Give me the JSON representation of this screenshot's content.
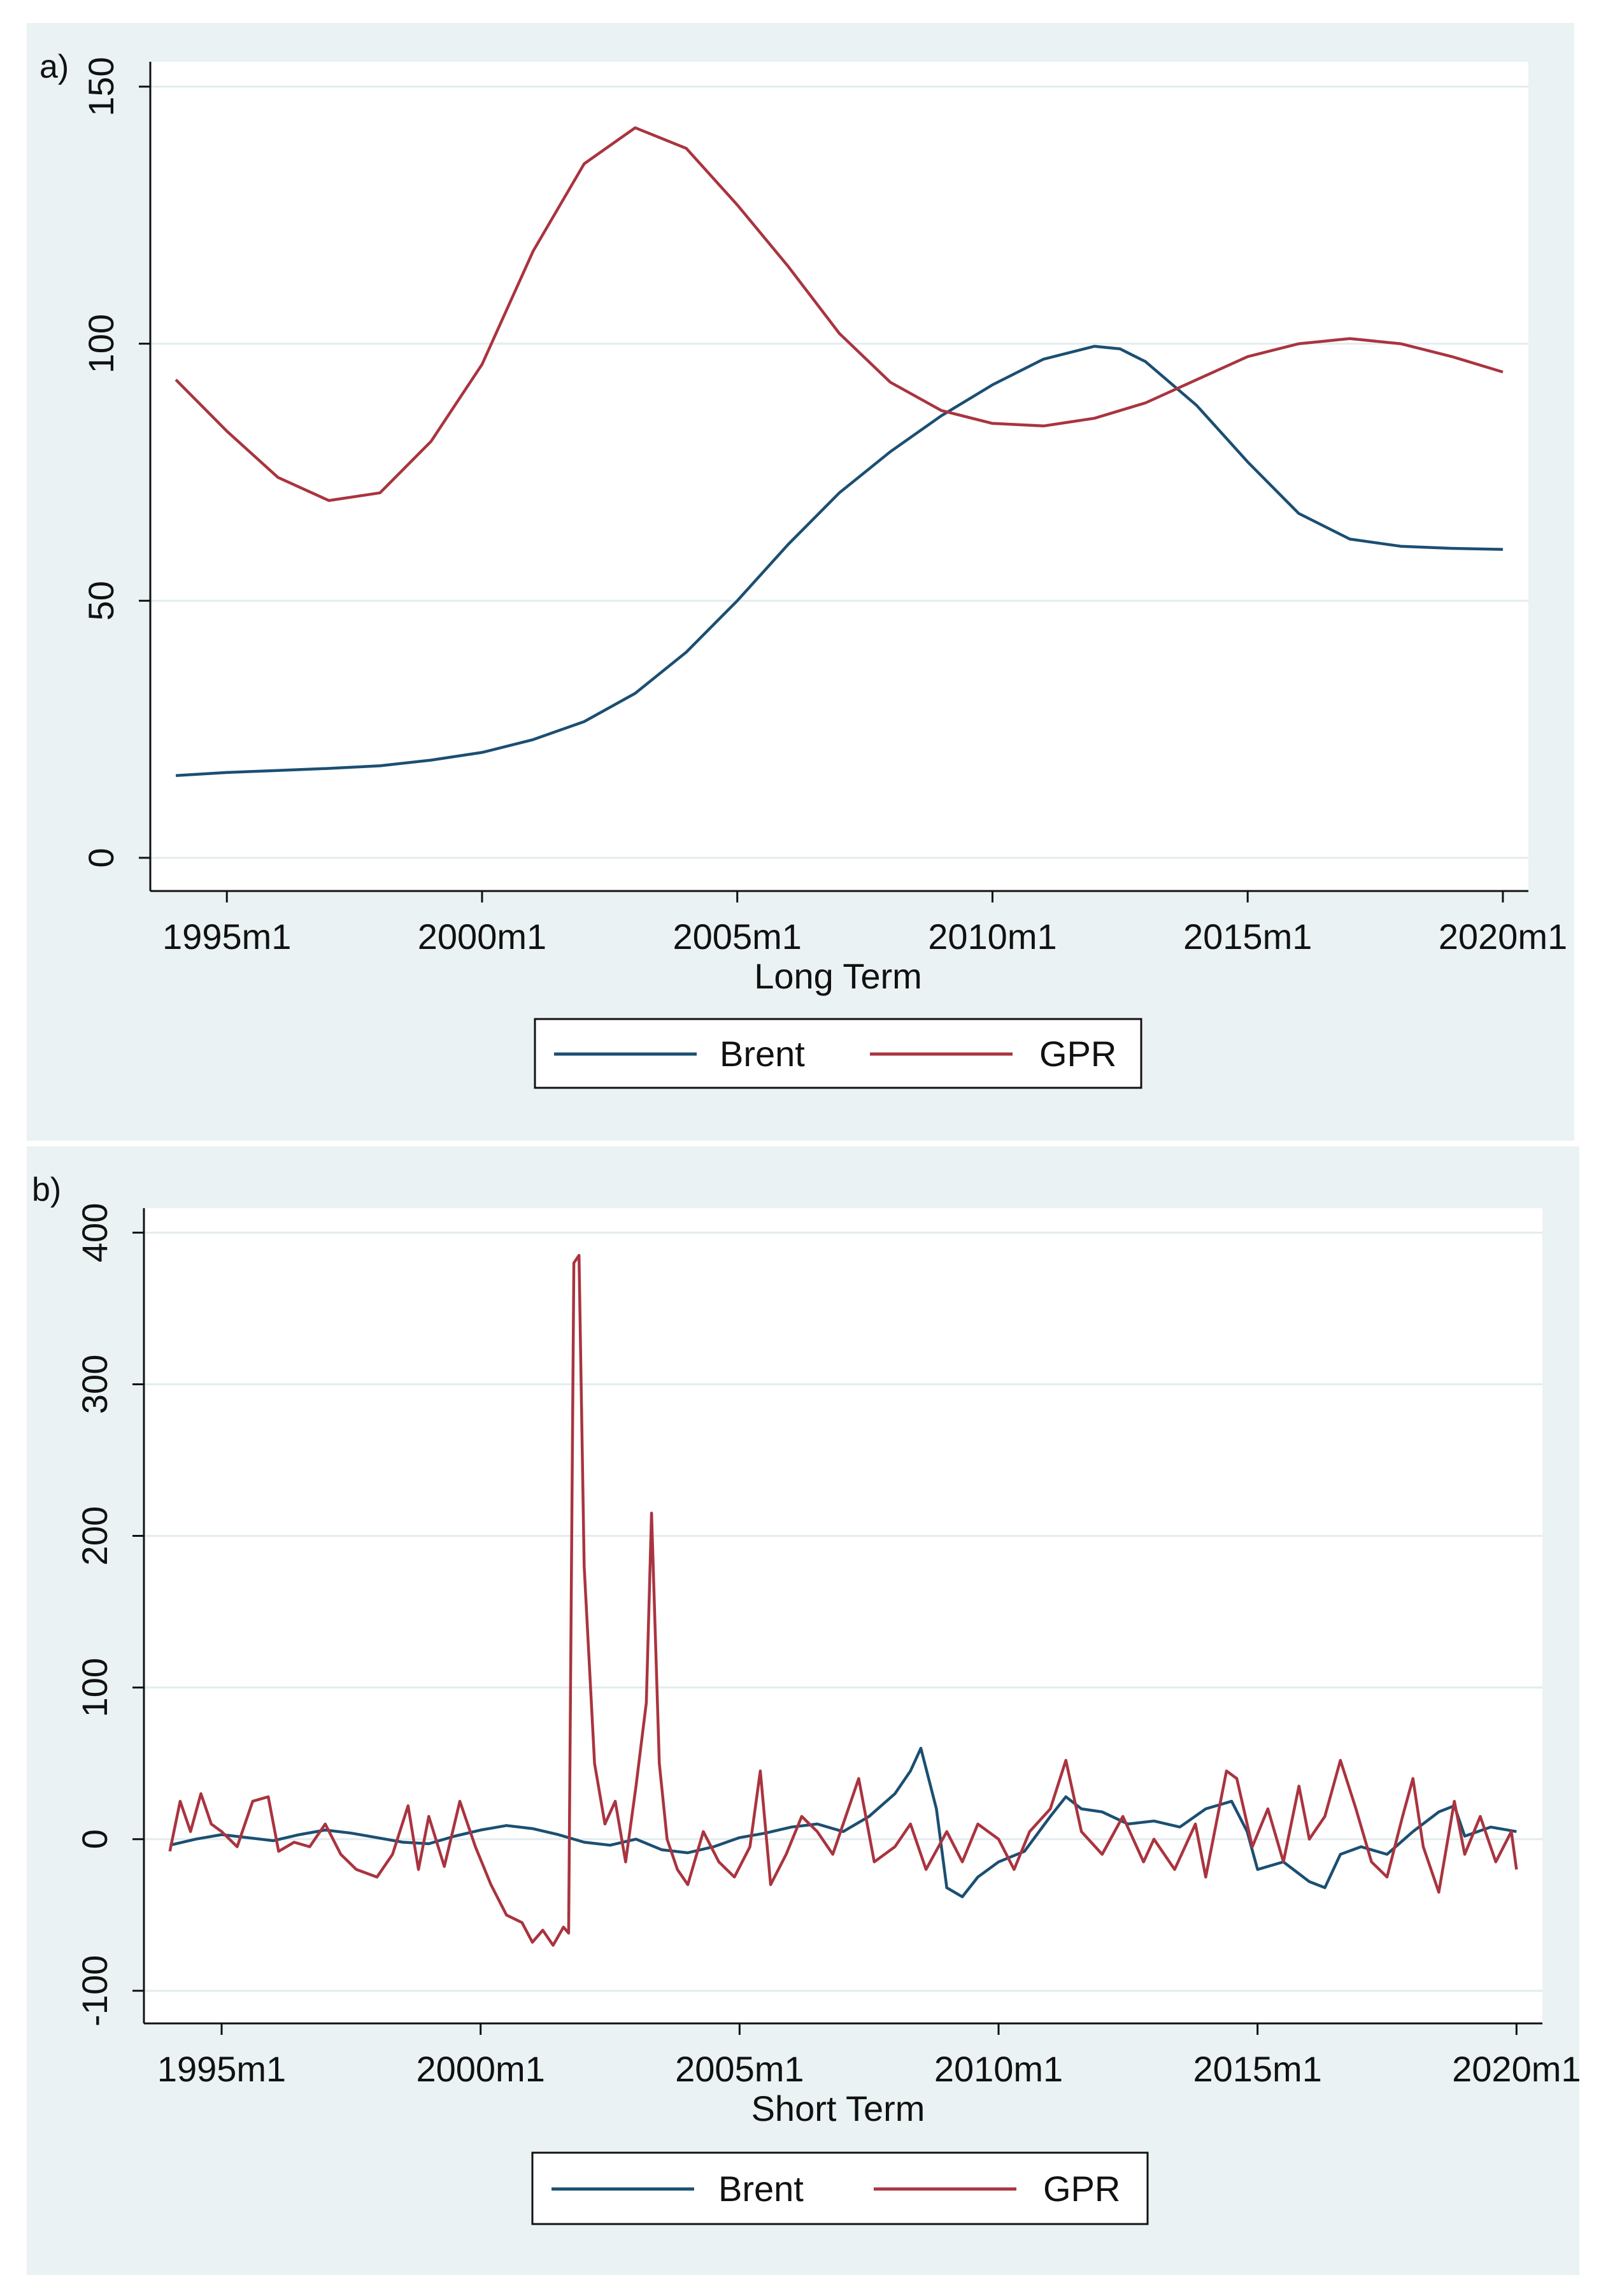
{
  "chart_data": [
    {
      "type": "line",
      "panel_label": "a)",
      "title": "",
      "xlabel": "Long Term",
      "ylabel": "",
      "xlim": [
        1993.5,
        2020.5
      ],
      "ylim": [
        0,
        150
      ],
      "x_ticks": [
        {
          "value": 1995,
          "label": "1995m1"
        },
        {
          "value": 2000,
          "label": "2000m1"
        },
        {
          "value": 2005,
          "label": "2005m1"
        },
        {
          "value": 2010,
          "label": "2010m1"
        },
        {
          "value": 2015,
          "label": "2015m1"
        },
        {
          "value": 2020,
          "label": "2020m1"
        }
      ],
      "y_ticks": [
        {
          "value": 0,
          "label": "0"
        },
        {
          "value": 50,
          "label": "50"
        },
        {
          "value": 100,
          "label": "100"
        },
        {
          "value": 150,
          "label": "150"
        }
      ],
      "grid": true,
      "legend": "bottom",
      "series": [
        {
          "name": "Brent",
          "color": "#1b4f72",
          "points": [
            [
              1994,
              16
            ],
            [
              1995,
              16.6
            ],
            [
              1996,
              17
            ],
            [
              1997,
              17.4
            ],
            [
              1998,
              17.9
            ],
            [
              1999,
              19
            ],
            [
              2000,
              20.5
            ],
            [
              2001,
              23
            ],
            [
              2002,
              26.5
            ],
            [
              2003,
              32
            ],
            [
              2004,
              40
            ],
            [
              2005,
              50
            ],
            [
              2006,
              61
            ],
            [
              2007,
              71
            ],
            [
              2008,
              79
            ],
            [
              2009,
              86
            ],
            [
              2010,
              92
            ],
            [
              2011,
              97
            ],
            [
              2012,
              99.5
            ],
            [
              2012.5,
              99
            ],
            [
              2013,
              96.5
            ],
            [
              2014,
              88
            ],
            [
              2015,
              77
            ],
            [
              2016,
              67
            ],
            [
              2017,
              62
            ],
            [
              2018,
              60.6
            ],
            [
              2019,
              60.2
            ],
            [
              2020,
              60
            ]
          ]
        },
        {
          "name": "GPR",
          "color": "#a9343f",
          "points": [
            [
              1994,
              93
            ],
            [
              1995,
              83
            ],
            [
              1996,
              74
            ],
            [
              1997,
              69.5
            ],
            [
              1998,
              71
            ],
            [
              1999,
              81
            ],
            [
              2000,
              96
            ],
            [
              2001,
              118
            ],
            [
              2002,
              135
            ],
            [
              2003,
              142
            ],
            [
              2004,
              138
            ],
            [
              2005,
              127
            ],
            [
              2006,
              115
            ],
            [
              2007,
              102
            ],
            [
              2008,
              92.5
            ],
            [
              2009,
              87
            ],
            [
              2010,
              84.5
            ],
            [
              2011,
              84
            ],
            [
              2012,
              85.5
            ],
            [
              2013,
              88.5
            ],
            [
              2014,
              93
            ],
            [
              2015,
              97.5
            ],
            [
              2016,
              100
            ],
            [
              2017,
              101
            ],
            [
              2018,
              100
            ],
            [
              2019,
              97.5
            ],
            [
              2020,
              94.5
            ]
          ]
        }
      ]
    },
    {
      "type": "line",
      "panel_label": "b)",
      "title": "",
      "xlabel": "Short Term",
      "ylabel": "",
      "xlim": [
        1993.5,
        2020.5
      ],
      "ylim": [
        -100,
        400
      ],
      "x_ticks": [
        {
          "value": 1995,
          "label": "1995m1"
        },
        {
          "value": 2000,
          "label": "2000m1"
        },
        {
          "value": 2005,
          "label": "2005m1"
        },
        {
          "value": 2010,
          "label": "2010m1"
        },
        {
          "value": 2015,
          "label": "2015m1"
        },
        {
          "value": 2020,
          "label": "2020m1"
        }
      ],
      "y_ticks": [
        {
          "value": -100,
          "label": "-100"
        },
        {
          "value": 0,
          "label": "0"
        },
        {
          "value": 100,
          "label": "100"
        },
        {
          "value": 200,
          "label": "200"
        },
        {
          "value": 300,
          "label": "300"
        },
        {
          "value": 400,
          "label": "400"
        }
      ],
      "grid": true,
      "legend": "bottom",
      "series": [
        {
          "name": "Brent",
          "color": "#1b4f72",
          "points": [
            [
              1994,
              -4
            ],
            [
              1994.5,
              0
            ],
            [
              1995,
              3
            ],
            [
              1995.5,
              1
            ],
            [
              1996,
              -1
            ],
            [
              1996.5,
              3
            ],
            [
              1997,
              6
            ],
            [
              1997.5,
              4
            ],
            [
              1998,
              1
            ],
            [
              1998.5,
              -2
            ],
            [
              1999,
              -3
            ],
            [
              1999.5,
              2
            ],
            [
              2000,
              6
            ],
            [
              2000.5,
              9
            ],
            [
              2001,
              7
            ],
            [
              2001.5,
              3
            ],
            [
              2002,
              -2
            ],
            [
              2002.5,
              -4
            ],
            [
              2003,
              0
            ],
            [
              2003.5,
              -7
            ],
            [
              2004,
              -9
            ],
            [
              2004.5,
              -5
            ],
            [
              2005,
              1
            ],
            [
              2005.5,
              4
            ],
            [
              2006,
              8
            ],
            [
              2006.5,
              10
            ],
            [
              2007,
              5
            ],
            [
              2007.5,
              15
            ],
            [
              2008,
              30
            ],
            [
              2008.3,
              45
            ],
            [
              2008.5,
              60
            ],
            [
              2008.8,
              20
            ],
            [
              2009,
              -32
            ],
            [
              2009.3,
              -38
            ],
            [
              2009.6,
              -25
            ],
            [
              2010,
              -15
            ],
            [
              2010.5,
              -8
            ],
            [
              2011,
              15
            ],
            [
              2011.3,
              28
            ],
            [
              2011.6,
              20
            ],
            [
              2012,
              18
            ],
            [
              2012.5,
              10
            ],
            [
              2013,
              12
            ],
            [
              2013.5,
              8
            ],
            [
              2014,
              20
            ],
            [
              2014.5,
              25
            ],
            [
              2014.8,
              5
            ],
            [
              2015,
              -20
            ],
            [
              2015.5,
              -15
            ],
            [
              2016,
              -28
            ],
            [
              2016.3,
              -32
            ],
            [
              2016.6,
              -10
            ],
            [
              2017,
              -5
            ],
            [
              2017.5,
              -10
            ],
            [
              2018,
              5
            ],
            [
              2018.5,
              18
            ],
            [
              2018.8,
              22
            ],
            [
              2019,
              2
            ],
            [
              2019.5,
              8
            ],
            [
              2020,
              5
            ]
          ]
        },
        {
          "name": "GPR",
          "color": "#a9343f",
          "points": [
            [
              1994,
              -8
            ],
            [
              1994.2,
              25
            ],
            [
              1994.4,
              5
            ],
            [
              1994.6,
              30
            ],
            [
              1994.8,
              10
            ],
            [
              1995,
              5
            ],
            [
              1995.3,
              -5
            ],
            [
              1995.6,
              25
            ],
            [
              1995.9,
              28
            ],
            [
              1996.1,
              -8
            ],
            [
              1996.4,
              -2
            ],
            [
              1996.7,
              -5
            ],
            [
              1997,
              10
            ],
            [
              1997.3,
              -10
            ],
            [
              1997.6,
              -20
            ],
            [
              1998,
              -25
            ],
            [
              1998.3,
              -10
            ],
            [
              1998.6,
              22
            ],
            [
              1998.8,
              -20
            ],
            [
              1999,
              15
            ],
            [
              1999.3,
              -18
            ],
            [
              1999.6,
              25
            ],
            [
              1999.9,
              -5
            ],
            [
              2000.2,
              -30
            ],
            [
              2000.5,
              -50
            ],
            [
              2000.8,
              -55
            ],
            [
              2001,
              -68
            ],
            [
              2001.2,
              -60
            ],
            [
              2001.4,
              -70
            ],
            [
              2001.6,
              -58
            ],
            [
              2001.7,
              -62
            ],
            [
              2001.8,
              380
            ],
            [
              2001.9,
              385
            ],
            [
              2002,
              180
            ],
            [
              2002.2,
              50
            ],
            [
              2002.4,
              10
            ],
            [
              2002.6,
              25
            ],
            [
              2002.8,
              -15
            ],
            [
              2003,
              35
            ],
            [
              2003.2,
              90
            ],
            [
              2003.3,
              215
            ],
            [
              2003.45,
              50
            ],
            [
              2003.6,
              0
            ],
            [
              2003.8,
              -20
            ],
            [
              2004,
              -30
            ],
            [
              2004.3,
              5
            ],
            [
              2004.6,
              -15
            ],
            [
              2004.9,
              -25
            ],
            [
              2005.2,
              -5
            ],
            [
              2005.4,
              45
            ],
            [
              2005.6,
              -30
            ],
            [
              2005.9,
              -10
            ],
            [
              2006.2,
              15
            ],
            [
              2006.5,
              5
            ],
            [
              2006.8,
              -10
            ],
            [
              2007,
              10
            ],
            [
              2007.3,
              40
            ],
            [
              2007.6,
              -15
            ],
            [
              2008,
              -5
            ],
            [
              2008.3,
              10
            ],
            [
              2008.6,
              -20
            ],
            [
              2009,
              5
            ],
            [
              2009.3,
              -15
            ],
            [
              2009.6,
              10
            ],
            [
              2010,
              0
            ],
            [
              2010.3,
              -20
            ],
            [
              2010.6,
              5
            ],
            [
              2011,
              20
            ],
            [
              2011.3,
              52
            ],
            [
              2011.6,
              5
            ],
            [
              2012,
              -10
            ],
            [
              2012.4,
              15
            ],
            [
              2012.8,
              -15
            ],
            [
              2013,
              0
            ],
            [
              2013.4,
              -20
            ],
            [
              2013.8,
              10
            ],
            [
              2014,
              -25
            ],
            [
              2014.4,
              45
            ],
            [
              2014.6,
              40
            ],
            [
              2014.9,
              -5
            ],
            [
              2015.2,
              20
            ],
            [
              2015.5,
              -15
            ],
            [
              2015.8,
              35
            ],
            [
              2016,
              0
            ],
            [
              2016.3,
              15
            ],
            [
              2016.6,
              52
            ],
            [
              2016.9,
              20
            ],
            [
              2017.2,
              -15
            ],
            [
              2017.5,
              -25
            ],
            [
              2017.8,
              15
            ],
            [
              2018,
              40
            ],
            [
              2018.2,
              -5
            ],
            [
              2018.5,
              -35
            ],
            [
              2018.8,
              25
            ],
            [
              2019,
              -10
            ],
            [
              2019.3,
              15
            ],
            [
              2019.6,
              -15
            ],
            [
              2019.9,
              5
            ],
            [
              2020,
              -20
            ]
          ]
        }
      ]
    }
  ]
}
